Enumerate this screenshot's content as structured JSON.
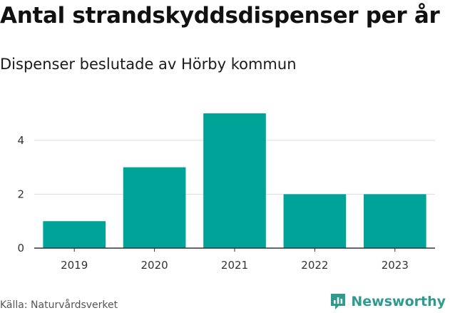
{
  "chart_data": {
    "type": "bar",
    "title": "Antal strandskyddsdispenser per år",
    "subtitle": "Dispenser beslutade av Hörby kommun",
    "categories": [
      "2019",
      "2020",
      "2021",
      "2022",
      "2023"
    ],
    "values": [
      1,
      3,
      5,
      2,
      2
    ],
    "ylim": [
      0,
      5
    ],
    "yticks": [
      0,
      2,
      4
    ],
    "xlabel": "",
    "ylabel": "",
    "grid": true,
    "bar_color": "#00a398"
  },
  "source": "Källa: Naturvårdsverket",
  "brand": {
    "name": "Newsworthy",
    "icon": "newsworthy-logo-icon",
    "color": "#2f9b8f"
  }
}
